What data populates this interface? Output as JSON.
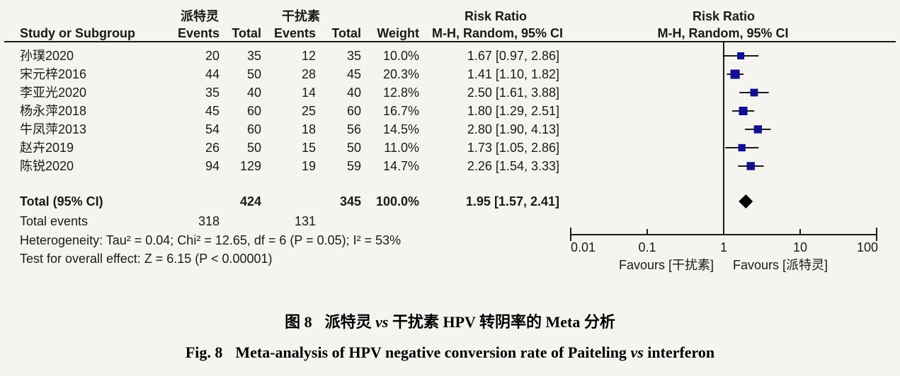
{
  "header": {
    "group_experimental": "派特灵",
    "group_control": "干扰素",
    "risk_ratio_left": "Risk Ratio",
    "risk_ratio_right": "Risk Ratio",
    "study": "Study or Subgroup",
    "events_exp": "Events",
    "total_exp": "Total",
    "events_ctl": "Events",
    "total_ctl": "Total",
    "weight": "Weight",
    "mh_ci_left": "M-H, Random, 95% CI",
    "mh_ci_right": "M-H, Random, 95% CI"
  },
  "chart_data": {
    "type": "forest",
    "effect_measure": "Risk Ratio, M-H, Random, 95% CI",
    "x_scale": "log",
    "x_ticks": [
      "0.01",
      "0.1",
      "1",
      "10",
      "100"
    ],
    "x_range": [
      0.01,
      100
    ],
    "x_axis_label_left": "Favours [干扰素]",
    "x_axis_label_right": "Favours [派特灵]",
    "marker_color": "#10108E",
    "line_color": "#1a1a1a",
    "summary_color": "#000000",
    "studies": [
      {
        "name": "孙璞2020",
        "events_exp": "20",
        "total_exp": "35",
        "events_ctl": "12",
        "total_ctl": "35",
        "weight": "10.0%",
        "weight_pct": 10.0,
        "rr": 1.67,
        "lo": 0.97,
        "hi": 2.86,
        "ci_label": "1.67 [0.97, 2.86]"
      },
      {
        "name": "宋元梓2016",
        "events_exp": "44",
        "total_exp": "50",
        "events_ctl": "28",
        "total_ctl": "45",
        "weight": "20.3%",
        "weight_pct": 20.3,
        "rr": 1.41,
        "lo": 1.1,
        "hi": 1.82,
        "ci_label": "1.41 [1.10, 1.82]"
      },
      {
        "name": "李亚光2020",
        "events_exp": "35",
        "total_exp": "40",
        "events_ctl": "14",
        "total_ctl": "40",
        "weight": "12.8%",
        "weight_pct": 12.8,
        "rr": 2.5,
        "lo": 1.61,
        "hi": 3.88,
        "ci_label": "2.50 [1.61, 3.88]"
      },
      {
        "name": "杨永萍2018",
        "events_exp": "45",
        "total_exp": "60",
        "events_ctl": "25",
        "total_ctl": "60",
        "weight": "16.7%",
        "weight_pct": 16.7,
        "rr": 1.8,
        "lo": 1.29,
        "hi": 2.51,
        "ci_label": "1.80 [1.29, 2.51]"
      },
      {
        "name": "牛凤萍2013",
        "events_exp": "54",
        "total_exp": "60",
        "events_ctl": "18",
        "total_ctl": "56",
        "weight": "14.5%",
        "weight_pct": 14.5,
        "rr": 2.8,
        "lo": 1.9,
        "hi": 4.13,
        "ci_label": "2.80 [1.90, 4.13]"
      },
      {
        "name": "赵卉2019",
        "events_exp": "26",
        "total_exp": "50",
        "events_ctl": "15",
        "total_ctl": "50",
        "weight": "11.0%",
        "weight_pct": 11.0,
        "rr": 1.73,
        "lo": 1.05,
        "hi": 2.86,
        "ci_label": "1.73 [1.05, 2.86]"
      },
      {
        "name": "陈锐2020",
        "events_exp": "94",
        "total_exp": "129",
        "events_ctl": "19",
        "total_ctl": "59",
        "weight": "14.7%",
        "weight_pct": 14.7,
        "rr": 2.26,
        "lo": 1.54,
        "hi": 3.33,
        "ci_label": "2.26 [1.54, 3.33]"
      }
    ],
    "total": {
      "label": "Total (95% CI)",
      "total_exp": "424",
      "total_ctl": "345",
      "weight": "100.0%",
      "rr": 1.95,
      "lo": 1.57,
      "hi": 2.41,
      "ci_label": "1.95 [1.57, 2.41]"
    },
    "total_events": {
      "label": "Total events",
      "exp": "318",
      "ctl": "131"
    }
  },
  "footer": {
    "heterogeneity": "Heterogeneity: Tau² = 0.04; Chi² = 12.65, df = 6 (P = 0.05); I² = 53%",
    "overall_effect": "Test for overall effect: Z = 6.15 (P < 0.00001)"
  },
  "caption": {
    "zh_fig": "图 8",
    "zh_pre": "派特灵 ",
    "zh_vs": "vs",
    "zh_post": " 干扰素 HPV 转阴率的 Meta 分析",
    "en_fig": "Fig. 8",
    "en_pre": "Meta-analysis of HPV negative conversion rate of Paiteling ",
    "en_vs": "vs",
    "en_post": " interferon"
  }
}
